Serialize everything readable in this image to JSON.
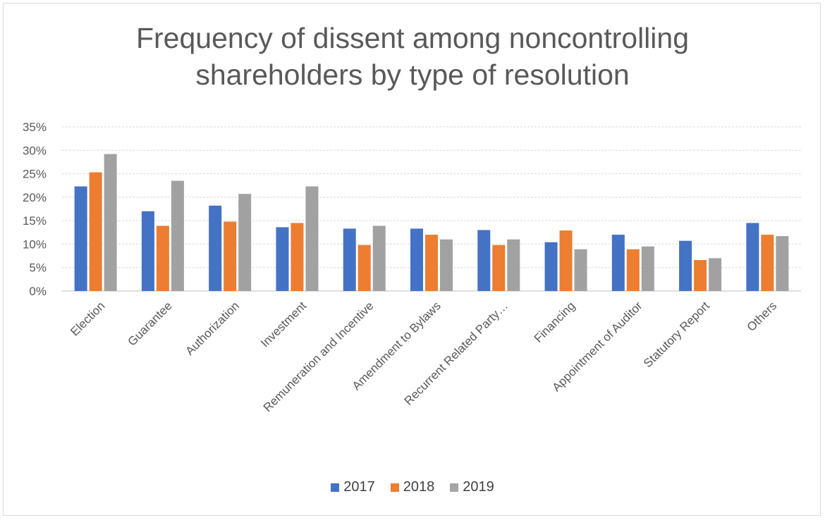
{
  "chart_data": {
    "type": "bar",
    "title_lines": [
      "Frequency of dissent among noncontrolling",
      "shareholders by type of resolution"
    ],
    "categories": [
      "Election",
      "Guarantee",
      "Authorization",
      "Investment",
      "Remuneration and Incentive",
      "Amendment to Bylaws",
      "Recurrent Related Party…",
      "Financing",
      "Appointment of Auditor",
      "Statutory Report",
      "Others"
    ],
    "series": [
      {
        "name": "2017",
        "color": "#4472c4",
        "values": [
          22.3,
          17.0,
          18.2,
          13.6,
          13.3,
          13.3,
          13.0,
          10.4,
          12.0,
          10.7,
          14.5
        ]
      },
      {
        "name": "2018",
        "color": "#ed7d31",
        "values": [
          25.3,
          13.9,
          14.8,
          14.5,
          9.8,
          12.0,
          9.8,
          12.9,
          8.9,
          6.6,
          12.0
        ]
      },
      {
        "name": "2019",
        "color": "#a5a5a5",
        "values": [
          29.2,
          23.5,
          20.7,
          22.3,
          13.9,
          11.0,
          11.0,
          8.9,
          9.5,
          7.0,
          11.7
        ]
      }
    ],
    "y_ticks": [
      "0%",
      "5%",
      "10%",
      "15%",
      "20%",
      "25%",
      "30%",
      "35%"
    ],
    "ylim": [
      0,
      35
    ],
    "grid": true,
    "legend_position": "bottom"
  }
}
